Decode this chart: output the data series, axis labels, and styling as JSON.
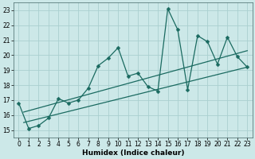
{
  "xlabel": "Humidex (Indice chaleur)",
  "bg_color": "#cce8e8",
  "grid_color": "#aad0d0",
  "line_color": "#1a6a60",
  "xlim": [
    -0.5,
    23.5
  ],
  "ylim": [
    14.5,
    23.5
  ],
  "xticks": [
    0,
    1,
    2,
    3,
    4,
    5,
    6,
    7,
    8,
    9,
    10,
    11,
    12,
    13,
    14,
    15,
    16,
    17,
    18,
    19,
    20,
    21,
    22,
    23
  ],
  "yticks": [
    15,
    16,
    17,
    18,
    19,
    20,
    21,
    22,
    23
  ],
  "main_x": [
    0,
    1,
    2,
    3,
    4,
    5,
    6,
    7,
    8,
    9,
    10,
    11,
    12,
    13,
    14,
    15,
    16,
    17,
    18,
    19,
    20,
    21,
    22,
    23
  ],
  "main_y": [
    16.8,
    15.1,
    15.3,
    15.8,
    17.1,
    16.8,
    17.0,
    17.8,
    19.3,
    19.8,
    20.5,
    18.6,
    18.8,
    17.9,
    17.6,
    23.1,
    21.7,
    17.7,
    21.3,
    20.9,
    19.4,
    21.2,
    19.9,
    19.2
  ],
  "trend1_x": [
    0.5,
    23
  ],
  "trend1_y": [
    15.5,
    19.2
  ],
  "trend2_x": [
    0.5,
    23
  ],
  "trend2_y": [
    16.2,
    20.3
  ],
  "marker_size": 2.5,
  "linewidth": 0.9
}
